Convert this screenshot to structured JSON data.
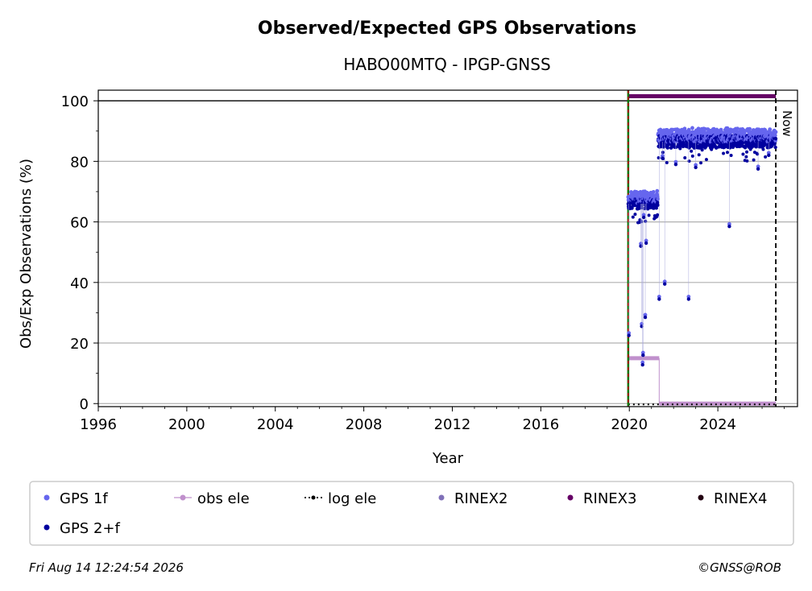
{
  "chart_data": {
    "type": "scatter",
    "title": "Observed/Expected GPS Observations",
    "subtitle": "HABO00MTQ - IPGP-GNSS",
    "xlabel": "Year",
    "ylabel": "Obs/Exp Observations (%)",
    "xlim": [
      1996,
      2027.6
    ],
    "ylim": [
      -1,
      103.5
    ],
    "xticks": [
      "1996",
      "2000",
      "2004",
      "2008",
      "2012",
      "2016",
      "2020",
      "2024"
    ],
    "yticks": [
      "0",
      "20",
      "40",
      "60",
      "80",
      "100"
    ],
    "grid": "horizontal",
    "now_label": "Now",
    "now_x": 2026.62,
    "start_x": 2019.95,
    "series": [
      {
        "name": "GPS 1f",
        "color": "#6666ee",
        "marker": "point"
      },
      {
        "name": "GPS 2+f",
        "color": "#00009f",
        "marker": "point"
      },
      {
        "name": "obs ele",
        "color": "#c090cc",
        "marker": "line-point",
        "segments": [
          {
            "x": [
              2019.95,
              2021.35
            ],
            "y": 15
          },
          {
            "x": [
              2021.35,
              2026.62
            ],
            "y": 0
          }
        ]
      },
      {
        "name": "log ele",
        "color": "#000000",
        "marker": "dotted",
        "segments": [
          {
            "x": [
              2019.95,
              2026.62
            ],
            "y": 0
          }
        ]
      },
      {
        "name": "RINEX2",
        "color": "#8070b8",
        "marker": "point"
      },
      {
        "name": "RINEX3",
        "color": "#660066",
        "marker": "point",
        "segments": [
          {
            "x": [
              2019.95,
              2026.62
            ],
            "y": 101.5
          }
        ]
      },
      {
        "name": "RINEX4",
        "color": "#220011",
        "marker": "point"
      }
    ],
    "bands": [
      {
        "x": [
          2019.95,
          2021.3
        ],
        "y": 66,
        "spread": 2.2,
        "step": 0.012
      },
      {
        "x": [
          2021.3,
          2026.62
        ],
        "y": 86.5,
        "spread": 2.6,
        "step": 0.012
      }
    ],
    "outliers": [
      {
        "x": 2019.98,
        "y": 22.5
      },
      {
        "x": 2020.52,
        "y": 52
      },
      {
        "x": 2020.56,
        "y": 25.5
      },
      {
        "x": 2020.6,
        "y": 12.8
      },
      {
        "x": 2020.62,
        "y": 16
      },
      {
        "x": 2020.72,
        "y": 28.5
      },
      {
        "x": 2020.76,
        "y": 53
      },
      {
        "x": 2021.35,
        "y": 34.5
      },
      {
        "x": 2021.6,
        "y": 39.5
      },
      {
        "x": 2022.68,
        "y": 34.5
      },
      {
        "x": 2024.52,
        "y": 58.5
      },
      {
        "x": 2020.65,
        "y": 61.5
      },
      {
        "x": 2021.5,
        "y": 81
      },
      {
        "x": 2023.0,
        "y": 78
      },
      {
        "x": 2025.82,
        "y": 77.5
      },
      {
        "x": 2022.1,
        "y": 79
      },
      {
        "x": 2026.3,
        "y": 82
      }
    ]
  },
  "legend": [
    {
      "label": "GPS 1f",
      "color": "#6666ee",
      "symbol": "dot"
    },
    {
      "label": "obs ele",
      "color": "#c090cc",
      "symbol": "line-dot"
    },
    {
      "label": "log ele",
      "color": "#000000",
      "symbol": "dotted-dot"
    },
    {
      "label": "RINEX2",
      "color": "#8070b8",
      "symbol": "dot"
    },
    {
      "label": "RINEX3",
      "color": "#660066",
      "symbol": "dot"
    },
    {
      "label": "RINEX4",
      "color": "#220011",
      "symbol": "dot"
    },
    {
      "label": "GPS 2+f",
      "color": "#00009f",
      "symbol": "dot"
    }
  ],
  "footer": {
    "timestamp": "Fri Aug 14 12:24:54 2026",
    "credit": "©GNSS@ROB"
  }
}
